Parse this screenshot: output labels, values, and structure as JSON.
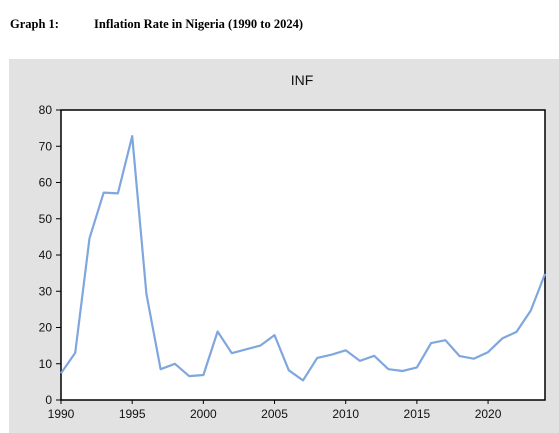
{
  "caption": {
    "number": "Graph 1:",
    "title": "Inflation Rate in Nigeria (1990 to 2024)"
  },
  "chart_data": {
    "type": "line",
    "title": "INF",
    "xlabel": "",
    "ylabel": "",
    "x": [
      1990,
      1991,
      1992,
      1993,
      1994,
      1995,
      1996,
      1997,
      1998,
      1999,
      2000,
      2001,
      2002,
      2003,
      2004,
      2005,
      2006,
      2007,
      2008,
      2009,
      2010,
      2011,
      2012,
      2013,
      2014,
      2015,
      2016,
      2017,
      2018,
      2019,
      2020,
      2021,
      2022,
      2023,
      2024
    ],
    "series": [
      {
        "values": [
          7.4,
          13.0,
          44.6,
          57.2,
          57.0,
          72.8,
          29.3,
          8.5,
          10.0,
          6.6,
          6.9,
          18.9,
          12.9,
          14.0,
          15.0,
          17.9,
          8.2,
          5.4,
          11.6,
          12.5,
          13.7,
          10.8,
          12.2,
          8.5,
          8.0,
          9.0,
          15.7,
          16.5,
          12.1,
          11.4,
          13.2,
          17.0,
          18.8,
          24.7,
          34.8
        ],
        "color": "#7fa7de"
      }
    ],
    "xlim": [
      1990,
      2024
    ],
    "ylim": [
      0,
      80
    ],
    "x_ticks": [
      "1990",
      "1995",
      "2000",
      "2005",
      "2010",
      "2015",
      "2020"
    ],
    "y_ticks": [
      "0",
      "10",
      "20",
      "30",
      "40",
      "50",
      "60",
      "70",
      "80"
    ],
    "grid": false,
    "legend": "none"
  }
}
